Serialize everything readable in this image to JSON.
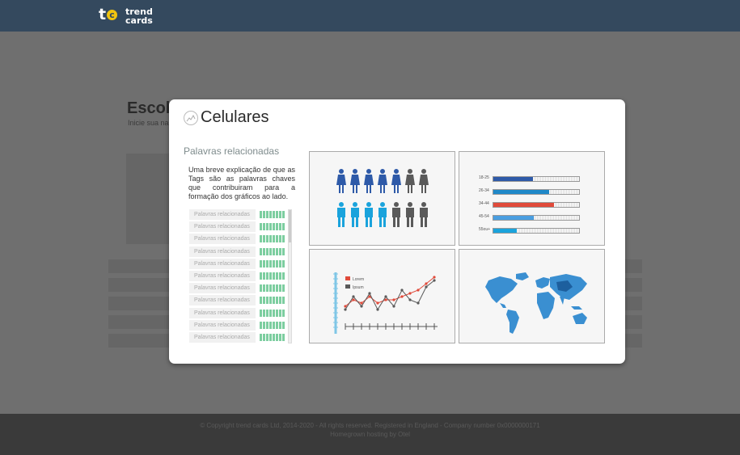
{
  "topbar": {
    "logo_mark_t": "t",
    "logo_mark_c": "c",
    "logo_line1": "trend",
    "logo_line2": "cards"
  },
  "background": {
    "title": "Escol",
    "subtitle": "Inicie sua na"
  },
  "footer": {
    "line1": "© Copyright trend cards Ltd, 2014-2020 - All rights reserved. Registered in England - Company number 0x0000000171",
    "line2": "Homegrown hosting by Otel"
  },
  "modal": {
    "title": "Celulares",
    "section_title": "Palavras relacionadas",
    "description": "Uma breve explicação de que as Tags são as palavras chaves que contribuiram para a formação dos gráficos ao lado.",
    "keywords": [
      "Palavras relacionadas",
      "Palavras relacionadas",
      "Palavras relacionadas",
      "Palavras relacionadas",
      "Palavras relacionadas",
      "Palavras relacionadas",
      "Palavras relacionadas",
      "Palavras relacionadas",
      "Palavras relacionadas",
      "Palavras relacionadas",
      "Palavras relacionadas"
    ]
  },
  "colors": {
    "female": "#2e5aa8",
    "male": "#1aa3dc",
    "gray": "#5a5a5a",
    "red": "#e04a3a",
    "green": "#7dcea0",
    "map": "#3a8fd1"
  },
  "gender_panel": {
    "female_row": [
      "female",
      "female",
      "female",
      "female",
      "female",
      "gray",
      "gray"
    ],
    "male_row": [
      "male",
      "male",
      "male",
      "male",
      "gray",
      "gray",
      "gray"
    ]
  },
  "age_panel": {
    "bars": [
      {
        "label": "18-25",
        "fill": 0.46,
        "color": "#2e5aa8"
      },
      {
        "label": "26-34",
        "fill": 0.65,
        "color": "#1f88c8"
      },
      {
        "label": "34-44",
        "fill": 0.71,
        "color": "#e04a3a"
      },
      {
        "label": "45-54",
        "fill": 0.47,
        "color": "#4a9ee0"
      },
      {
        "label": "55ou+",
        "fill": 0.27,
        "color": "#1aa3dc"
      }
    ]
  },
  "trend_panel": {
    "legend": [
      {
        "label": "Lorem",
        "color": "#e04a3a"
      },
      {
        "label": "Ipsum",
        "color": "#5a5a5a"
      }
    ],
    "series": [
      {
        "name": "Lorem",
        "color": "#e04a3a",
        "values": [
          3,
          5,
          4,
          6,
          4,
          5,
          5,
          6,
          7,
          8,
          10,
          12
        ]
      },
      {
        "name": "Ipsum",
        "color": "#5a5a5a",
        "values": [
          2,
          6,
          3,
          7,
          2,
          6,
          3,
          8,
          5,
          4,
          9,
          11
        ]
      }
    ]
  }
}
